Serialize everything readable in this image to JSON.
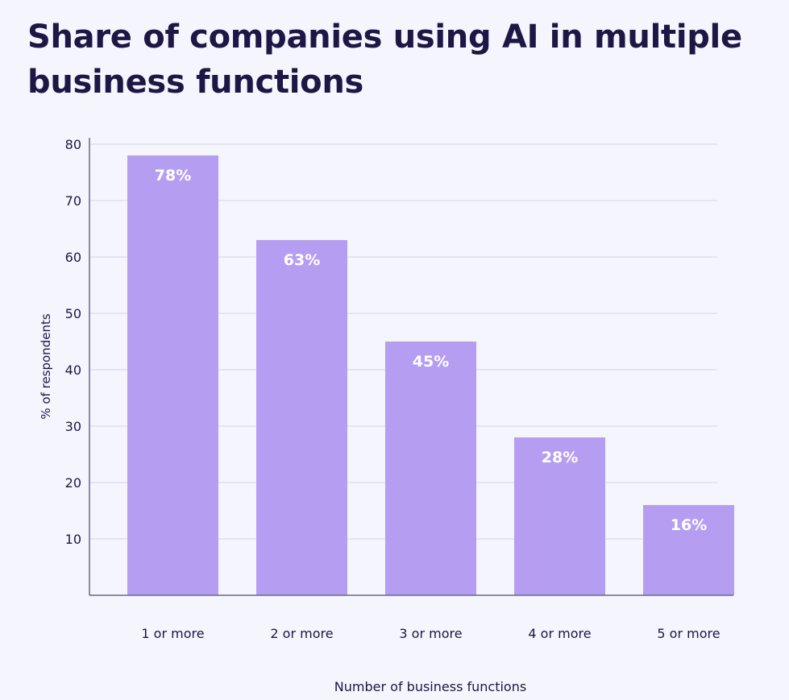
{
  "chart_data": {
    "type": "bar",
    "title": "Share of companies using AI in multiple business functions",
    "xlabel": "Number of business functions",
    "ylabel": "% of respondents",
    "categories": [
      "1 or more",
      "2 or more",
      "3 or more",
      "4 or more",
      "5 or more"
    ],
    "values": [
      78,
      63,
      45,
      28,
      16
    ],
    "data_labels": [
      "78%",
      "63%",
      "45%",
      "28%",
      "16%"
    ],
    "ylim": [
      0,
      80
    ],
    "yticks": [
      10,
      20,
      30,
      40,
      50,
      60,
      70,
      80
    ],
    "grid": true,
    "colors": {
      "bar": "#b59ef2",
      "background": "#f5f5fe",
      "text": "#1e1644",
      "grid": "#dcdaea",
      "data_label": "#ffffff"
    }
  }
}
